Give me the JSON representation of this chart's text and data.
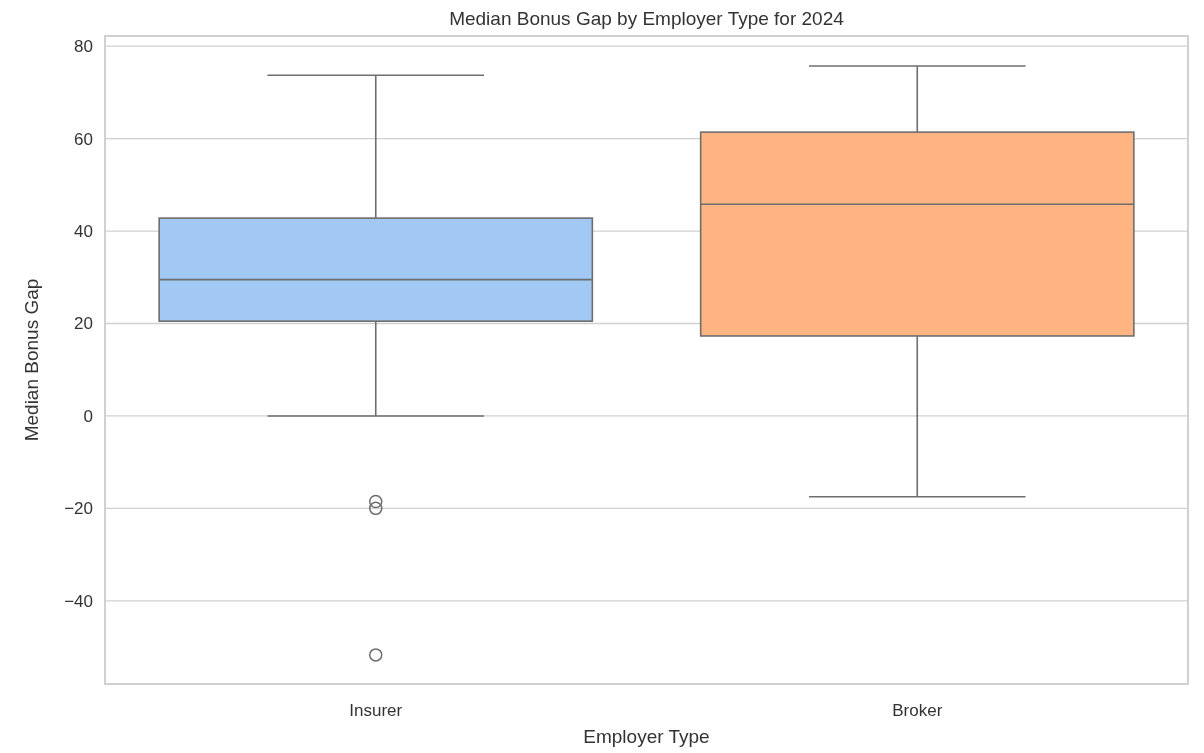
{
  "chart_data": {
    "type": "box",
    "title": "Median Bonus Gap by Employer Type for 2024",
    "xlabel": "Employer Type",
    "ylabel": "Median Bonus Gap",
    "categories": [
      "Insurer",
      "Broker"
    ],
    "colors": [
      "#a1c9f4",
      "#ffb482"
    ],
    "boxes": [
      {
        "low": 0,
        "q1": 20.5,
        "median": 29.5,
        "q3": 42.8,
        "high": 73.7,
        "outliers": [
          -18.5,
          -20,
          -51.7
        ]
      },
      {
        "low": -17.5,
        "q1": 17.3,
        "median": 45.8,
        "q3": 61.4,
        "high": 75.7
      }
    ],
    "ylim": [
      -58,
      82.2
    ],
    "yticks": [
      -40,
      -20,
      0,
      20,
      40,
      60,
      80
    ],
    "grid": "y"
  }
}
